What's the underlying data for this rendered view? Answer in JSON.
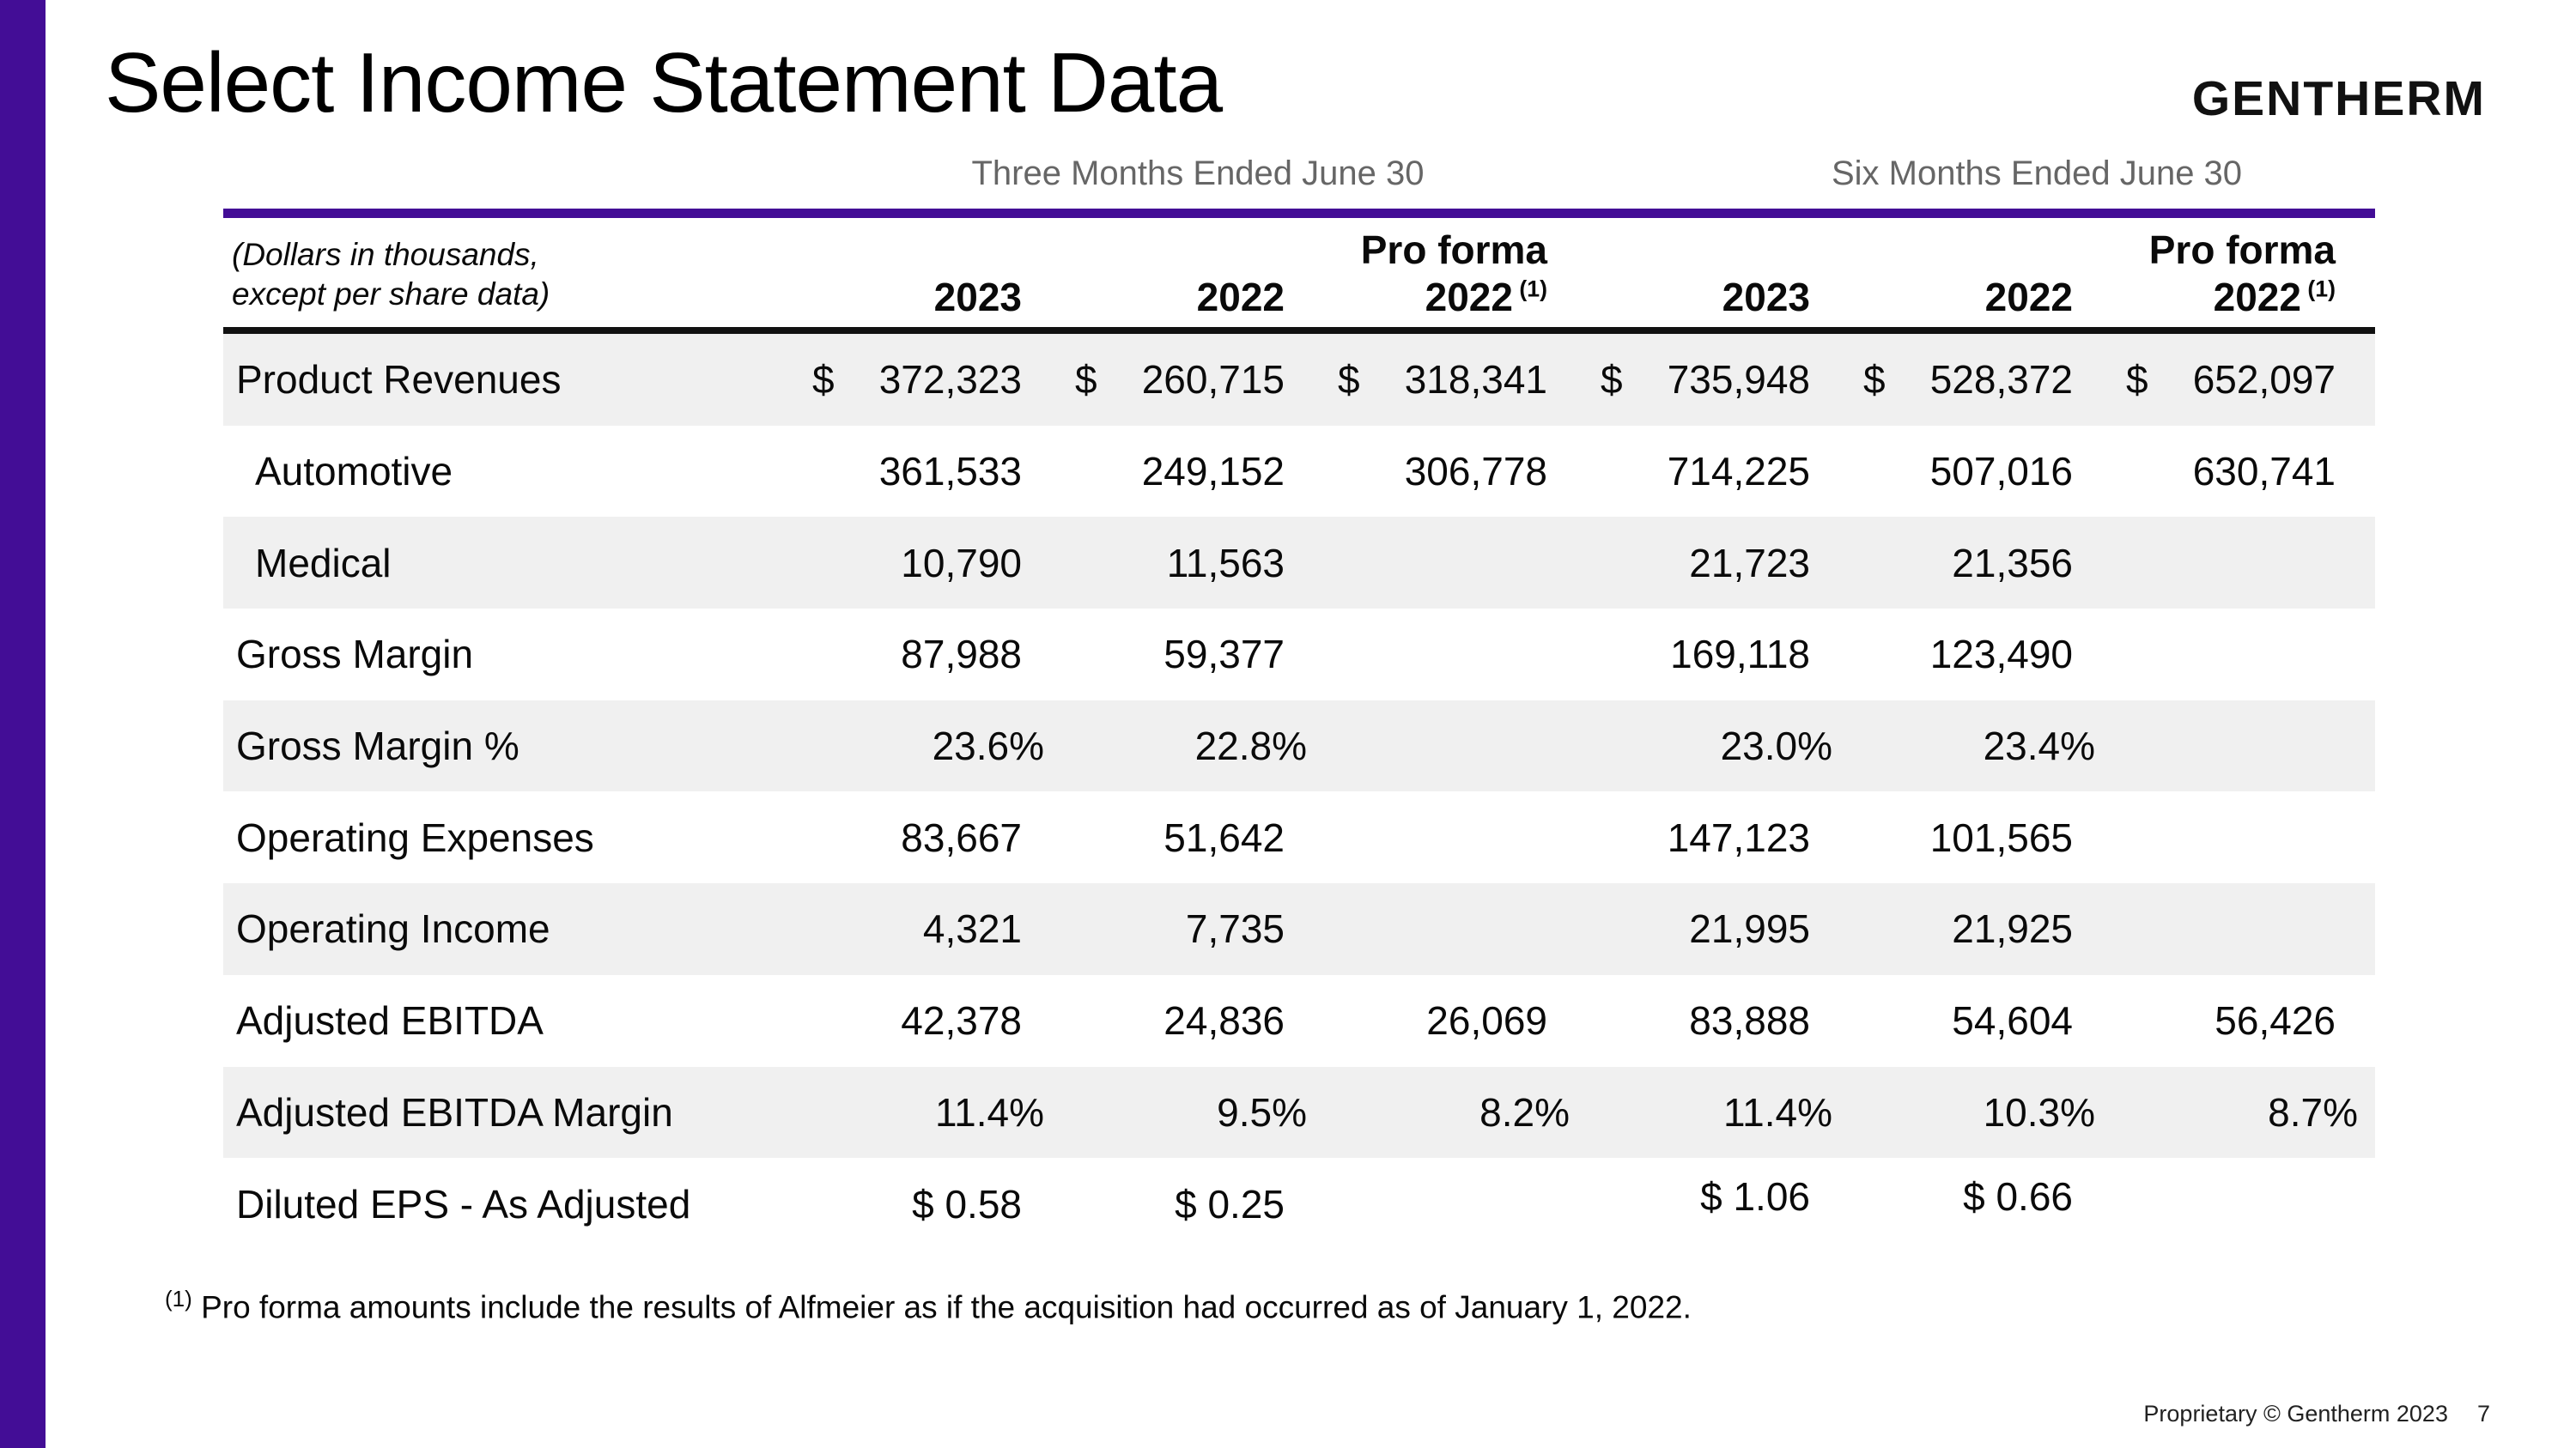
{
  "slide": {
    "title": "Select Income Statement Data",
    "logo": "GENTHERM",
    "footnote": {
      "sup": "(1)",
      "text": "Pro forma amounts include the results of Alfmeier as if the acquisition had occurred as of January 1, 2022."
    },
    "footer": {
      "text": "Proprietary © Gentherm 2023",
      "page": "7"
    }
  },
  "colors": {
    "purple": "#430d96",
    "stripe": "#f0f0f0"
  },
  "table": {
    "period_headers": [
      "Three Months Ended June 30",
      "Six Months Ended June 30"
    ],
    "caption_line1": "(Dollars in thousands,",
    "caption_line2": "except per share data)",
    "columns": [
      {
        "year": "2023"
      },
      {
        "year": "2022"
      },
      {
        "pre": "Pro forma",
        "year": "2022",
        "sup": "(1)"
      },
      {
        "year": "2023"
      },
      {
        "year": "2022"
      },
      {
        "pre": "Pro forma",
        "year": "2022",
        "sup": "(1)"
      }
    ],
    "rows": [
      {
        "label": "Product Revenues",
        "indent": false,
        "shaded": true,
        "cells": [
          {
            "d": "$",
            "v": "372,323"
          },
          {
            "d": "$",
            "v": "260,715"
          },
          {
            "d": "$",
            "v": "318,341"
          },
          {
            "d": "$",
            "v": "735,948"
          },
          {
            "d": "$",
            "v": "528,372"
          },
          {
            "d": "$",
            "v": "652,097"
          }
        ]
      },
      {
        "label": "Automotive",
        "indent": true,
        "shaded": false,
        "cells": [
          {
            "v": "361,533"
          },
          {
            "v": "249,152"
          },
          {
            "v": "306,778"
          },
          {
            "v": "714,225"
          },
          {
            "v": "507,016"
          },
          {
            "v": "630,741"
          }
        ]
      },
      {
        "label": "Medical",
        "indent": true,
        "shaded": true,
        "cells": [
          {
            "v": "10,790"
          },
          {
            "v": "11,563"
          },
          {},
          {
            "v": "21,723"
          },
          {
            "v": "21,356"
          },
          {}
        ]
      },
      {
        "label": "Gross Margin",
        "indent": false,
        "shaded": false,
        "cells": [
          {
            "v": "87,988"
          },
          {
            "v": "59,377"
          },
          {},
          {
            "v": "169,118"
          },
          {
            "v": "123,490"
          },
          {}
        ]
      },
      {
        "label": "Gross Margin %",
        "indent": false,
        "shaded": true,
        "percent": true,
        "cells": [
          {
            "v": "23.6%"
          },
          {
            "v": "22.8%"
          },
          {},
          {
            "v": "23.0%"
          },
          {
            "v": "23.4%"
          },
          {}
        ]
      },
      {
        "label": "Operating Expenses",
        "indent": false,
        "shaded": false,
        "cells": [
          {
            "v": "83,667"
          },
          {
            "v": "51,642"
          },
          {},
          {
            "v": "147,123"
          },
          {
            "v": "101,565"
          },
          {}
        ]
      },
      {
        "label": "Operating Income",
        "indent": false,
        "shaded": true,
        "cells": [
          {
            "v": "4,321"
          },
          {
            "v": "7,735"
          },
          {},
          {
            "v": "21,995"
          },
          {
            "v": "21,925"
          },
          {}
        ]
      },
      {
        "label": "Adjusted EBITDA",
        "indent": false,
        "shaded": false,
        "cells": [
          {
            "v": "42,378"
          },
          {
            "v": "24,836"
          },
          {
            "v": "26,069"
          },
          {
            "v": "83,888"
          },
          {
            "v": "54,604"
          },
          {
            "v": "56,426"
          }
        ]
      },
      {
        "label": "Adjusted EBITDA Margin",
        "indent": false,
        "shaded": true,
        "percent": true,
        "cells": [
          {
            "v": "11.4%"
          },
          {
            "v": "9.5%"
          },
          {
            "v": "8.2%"
          },
          {
            "v": "11.4%"
          },
          {
            "v": "10.3%"
          },
          {
            "v": "8.7%"
          }
        ]
      },
      {
        "label": "Diluted EPS - As Adjusted",
        "indent": false,
        "shaded": false,
        "cells": [
          {
            "v": "$ 0.58"
          },
          {
            "v": "$ 0.25"
          },
          {},
          {
            "v": "$ 1.06",
            "raise": true
          },
          {
            "v": "$ 0.66",
            "raise": true
          },
          {}
        ]
      }
    ]
  }
}
